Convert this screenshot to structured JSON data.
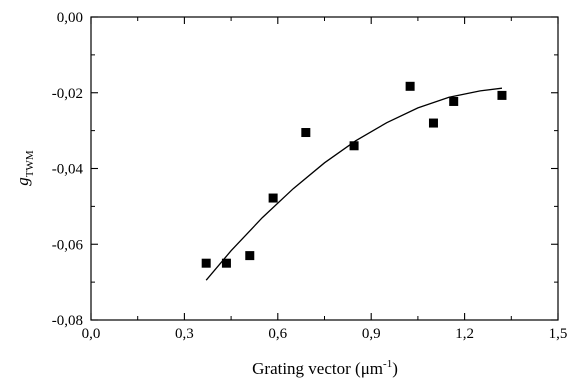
{
  "chart_data": {
    "type": "scatter",
    "title": "",
    "xlabel": {
      "main": "Grating  vector (μm",
      "sup": "-1",
      "close": ")"
    },
    "ylabel": {
      "main": "g",
      "sub": "TWM"
    },
    "xlim": [
      0.0,
      1.5
    ],
    "ylim": [
      -0.08,
      0.0
    ],
    "x_ticks": [
      0.0,
      0.3,
      0.6,
      0.9,
      1.2,
      1.5
    ],
    "x_tick_labels": [
      "0,0",
      "0,3",
      "0,6",
      "0,9",
      "1,2",
      "1,5"
    ],
    "y_ticks": [
      0.0,
      -0.02,
      -0.04,
      -0.06,
      -0.08
    ],
    "y_tick_labels": [
      "0,00",
      "-0,02",
      "-0,04",
      "-0,06",
      "-0,08"
    ],
    "grid": false,
    "legend": "none",
    "series": [
      {
        "type": "scatter",
        "marker": "square",
        "color": "#000000",
        "points": [
          {
            "x": 0.37,
            "y": -0.065
          },
          {
            "x": 0.435,
            "y": -0.065
          },
          {
            "x": 0.51,
            "y": -0.063
          },
          {
            "x": 0.585,
            "y": -0.0478
          },
          {
            "x": 0.69,
            "y": -0.0305
          },
          {
            "x": 0.845,
            "y": -0.034
          },
          {
            "x": 1.025,
            "y": -0.0183
          },
          {
            "x": 1.1,
            "y": -0.028
          },
          {
            "x": 1.165,
            "y": -0.0223
          },
          {
            "x": 1.32,
            "y": -0.0207
          }
        ]
      },
      {
        "type": "line",
        "color": "#000000",
        "points": [
          {
            "x": 0.37,
            "y": -0.0695
          },
          {
            "x": 0.45,
            "y": -0.0617
          },
          {
            "x": 0.55,
            "y": -0.053
          },
          {
            "x": 0.65,
            "y": -0.0453
          },
          {
            "x": 0.75,
            "y": -0.0385
          },
          {
            "x": 0.85,
            "y": -0.0327
          },
          {
            "x": 0.95,
            "y": -0.0279
          },
          {
            "x": 1.05,
            "y": -0.024
          },
          {
            "x": 1.15,
            "y": -0.0212
          },
          {
            "x": 1.25,
            "y": -0.0195
          },
          {
            "x": 1.32,
            "y": -0.0188
          }
        ]
      }
    ]
  }
}
